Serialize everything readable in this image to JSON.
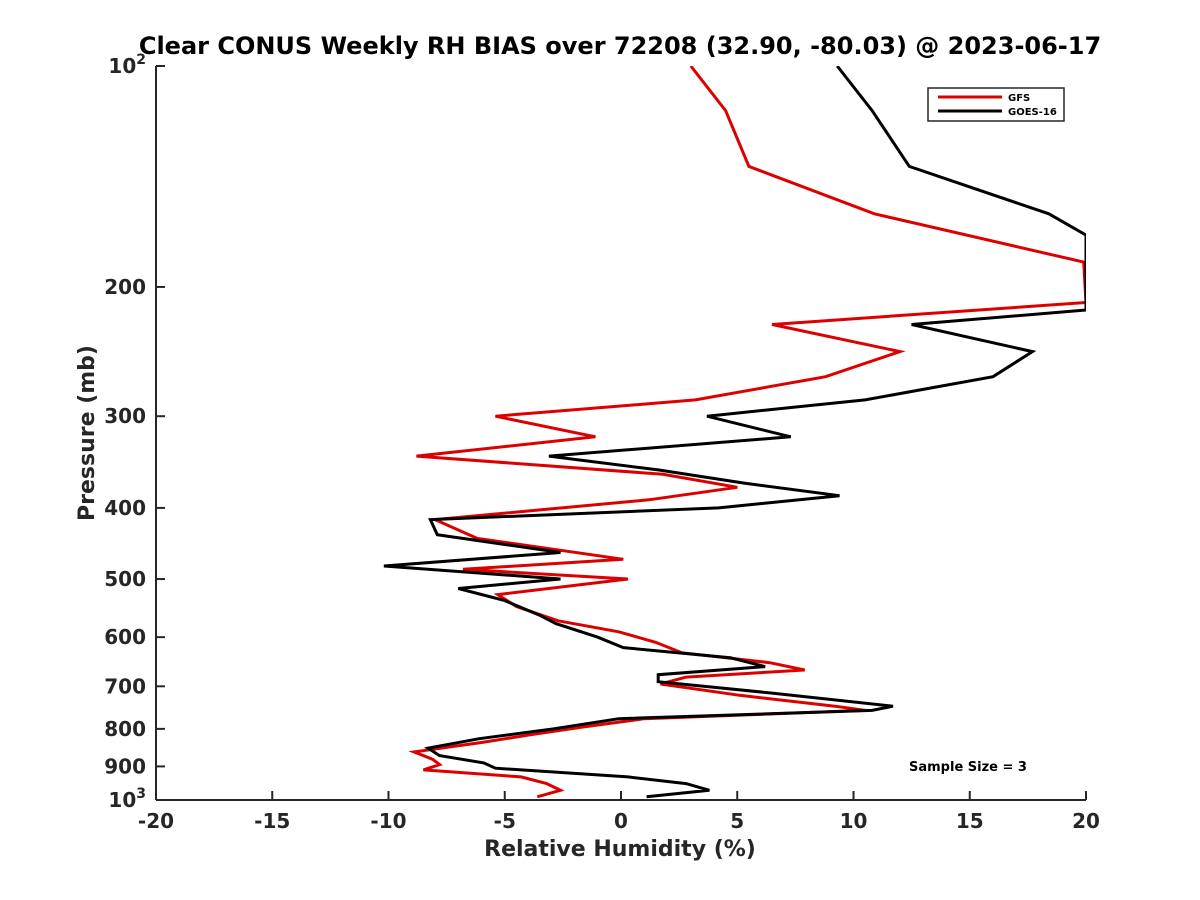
{
  "chart_data": {
    "type": "line",
    "title": "Clear CONUS Weekly RH BIAS over 72208 (32.90, -80.03) @ 2023-06-17",
    "xlabel": "Relative Humidity (%)",
    "ylabel": "Pressure (mb)",
    "xlim": [
      -20,
      20
    ],
    "ylim": [
      100,
      1000
    ],
    "yscale": "log",
    "y_reversed": true,
    "grid": false,
    "legend_position": "top-right",
    "xticks": [
      -20,
      -15,
      -10,
      -5,
      0,
      5,
      10,
      15,
      20
    ],
    "xtick_labels": [
      "-20",
      "-15",
      "-10",
      "-5",
      "0",
      "5",
      "10",
      "15",
      "20"
    ],
    "yticks": [
      100,
      200,
      300,
      400,
      500,
      600,
      700,
      800,
      900,
      1000
    ],
    "ytick_labels": [
      {
        "base": "10",
        "exp": "2"
      },
      {
        "base": "200",
        "exp": ""
      },
      {
        "base": "300",
        "exp": ""
      },
      {
        "base": "400",
        "exp": ""
      },
      {
        "base": "500",
        "exp": ""
      },
      {
        "base": "600",
        "exp": ""
      },
      {
        "base": "700",
        "exp": ""
      },
      {
        "base": "800",
        "exp": ""
      },
      {
        "base": "900",
        "exp": ""
      },
      {
        "base": "10",
        "exp": "3"
      }
    ],
    "annotation": "Sample Size = 3",
    "series": [
      {
        "name": "GFS",
        "color": "#dd0000",
        "points": [
          [
            3.0,
            100
          ],
          [
            4.5,
            115
          ],
          [
            5.5,
            137
          ],
          [
            10.9,
            159
          ],
          [
            19.9,
            185
          ],
          [
            20.0,
            210
          ],
          [
            6.5,
            225
          ],
          [
            12.0,
            245
          ],
          [
            8.8,
            265
          ],
          [
            3.2,
            285
          ],
          [
            -5.4,
            300
          ],
          [
            -1.1,
            320
          ],
          [
            -8.8,
            340
          ],
          [
            1.8,
            360
          ],
          [
            5.0,
            375
          ],
          [
            1.2,
            390
          ],
          [
            -8.0,
            415
          ],
          [
            -6.2,
            440
          ],
          [
            0.1,
            470
          ],
          [
            -6.8,
            485
          ],
          [
            0.3,
            500
          ],
          [
            -5.3,
            525
          ],
          [
            -4.5,
            545
          ],
          [
            -2.7,
            570
          ],
          [
            -0.1,
            590
          ],
          [
            1.5,
            610
          ],
          [
            2.6,
            630
          ],
          [
            6.4,
            650
          ],
          [
            7.9,
            665
          ],
          [
            2.8,
            680
          ],
          [
            1.7,
            695
          ],
          [
            5.1,
            720
          ],
          [
            9.2,
            745
          ],
          [
            10.5,
            755
          ],
          [
            1.0,
            775
          ],
          [
            -1.6,
            795
          ],
          [
            -3.9,
            815
          ],
          [
            -6.0,
            835
          ],
          [
            -8.9,
            860
          ],
          [
            -8.1,
            880
          ],
          [
            -7.8,
            895
          ],
          [
            -8.5,
            910
          ],
          [
            -4.3,
            930
          ],
          [
            -3.2,
            950
          ],
          [
            -2.6,
            970
          ],
          [
            -3.6,
            990
          ]
        ]
      },
      {
        "name": "GOES-16",
        "color": "#000000",
        "points": [
          [
            9.3,
            100
          ],
          [
            10.8,
            115
          ],
          [
            12.4,
            137
          ],
          [
            18.4,
            159
          ],
          [
            20.0,
            170
          ],
          [
            20.0,
            215
          ],
          [
            12.5,
            225
          ],
          [
            17.7,
            245
          ],
          [
            16.0,
            265
          ],
          [
            10.5,
            285
          ],
          [
            3.7,
            300
          ],
          [
            7.3,
            320
          ],
          [
            -3.1,
            340
          ],
          [
            1.6,
            355
          ],
          [
            5.3,
            370
          ],
          [
            9.4,
            385
          ],
          [
            4.2,
            400
          ],
          [
            -8.2,
            415
          ],
          [
            -7.9,
            435
          ],
          [
            -2.6,
            460
          ],
          [
            -10.2,
            480
          ],
          [
            -2.6,
            500
          ],
          [
            -7.0,
            515
          ],
          [
            -5.0,
            535
          ],
          [
            -3.5,
            560
          ],
          [
            -2.8,
            575
          ],
          [
            -1.0,
            600
          ],
          [
            0.1,
            620
          ],
          [
            4.7,
            640
          ],
          [
            6.2,
            658
          ],
          [
            1.6,
            675
          ],
          [
            1.6,
            690
          ],
          [
            6.5,
            715
          ],
          [
            11.7,
            745
          ],
          [
            10.8,
            755
          ],
          [
            -0.1,
            775
          ],
          [
            -2.9,
            800
          ],
          [
            -6.1,
            825
          ],
          [
            -8.3,
            850
          ],
          [
            -7.8,
            870
          ],
          [
            -5.9,
            890
          ],
          [
            -5.4,
            905
          ],
          [
            0.3,
            930
          ],
          [
            2.8,
            950
          ],
          [
            3.8,
            970
          ],
          [
            1.1,
            990
          ]
        ]
      }
    ]
  }
}
